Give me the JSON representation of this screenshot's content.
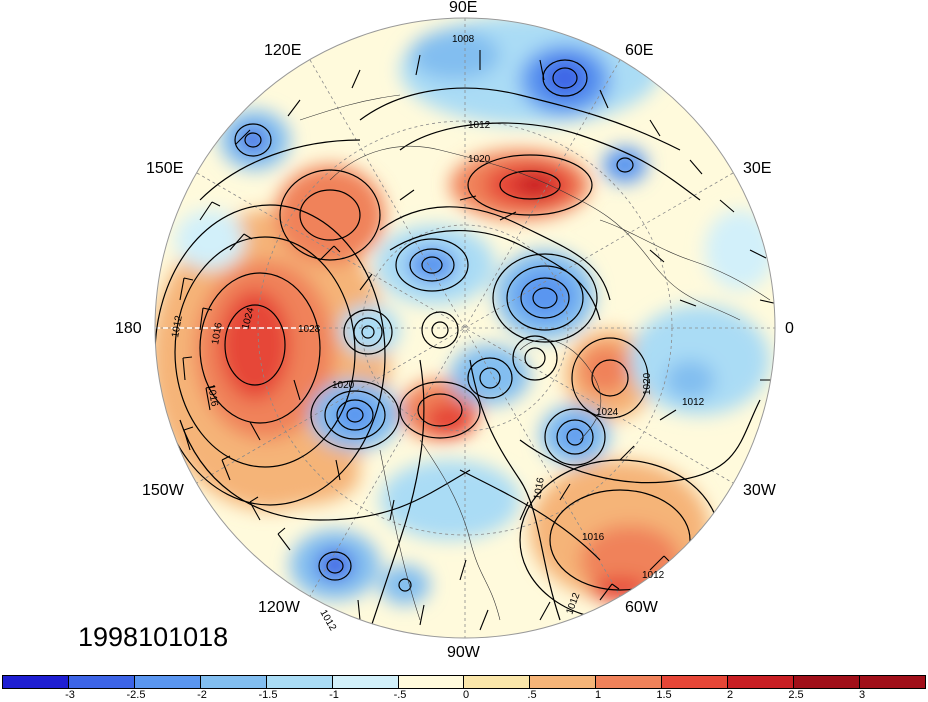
{
  "date_label": "1998101018",
  "longitude_labels": {
    "lon_90e": "90E",
    "lon_120e": "120E",
    "lon_60e": "60E",
    "lon_150e": "150E",
    "lon_30e": "30E",
    "lon_180": "180",
    "lon_0": "0",
    "lon_150w": "150W",
    "lon_30w": "30W",
    "lon_120w": "120W",
    "lon_60w": "60W",
    "lon_90w": "90W"
  },
  "contour_labels": [
    "1008",
    "1012",
    "1020",
    "1012",
    "1016",
    "1024",
    "1028",
    "1020",
    "1016",
    "1024",
    "1020",
    "1012",
    "1016",
    "1012",
    "1012",
    "1012",
    "1016"
  ],
  "colorbar": {
    "tick_labels": [
      "-3",
      "-2.5",
      "-2",
      "-1.5",
      "-1",
      "-.5",
      "0",
      ".5",
      "1",
      "1.5",
      "2",
      "2.5",
      "3"
    ],
    "colors": [
      "#1e1ed2",
      "#3c64e6",
      "#5a96f0",
      "#82bef0",
      "#aadcf5",
      "#d2f0fa",
      "#fffadc",
      "#fae6aa",
      "#f5b478",
      "#f0825a",
      "#e64637",
      "#c81e23",
      "#a00f19"
    ]
  },
  "pressure_highs": [
    "high-north-atlantic",
    "high-pacific",
    "high-europe",
    "high-canada"
  ],
  "pressure_lows": [
    "low-siberia",
    "low-arctic",
    "low-greenland",
    "low-pacific",
    "low-atlantic"
  ]
}
